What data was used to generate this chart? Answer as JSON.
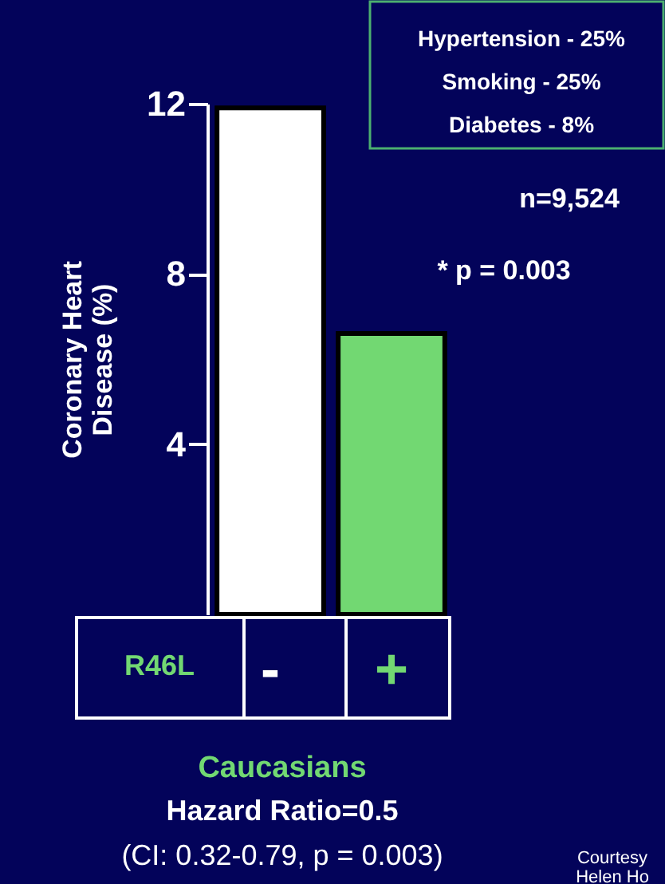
{
  "chart_data": {
    "type": "bar",
    "categories": [
      "-",
      "+"
    ],
    "values": [
      11.9,
      6.6
    ],
    "colors": [
      "#ffffff",
      "#72d872"
    ],
    "xlabel": "R46L",
    "ylabel": "Coronary Heart Disease (%)",
    "ylim": [
      0,
      12
    ],
    "yticks": [
      4,
      8,
      12
    ],
    "grid": false,
    "annotations": [
      "Hypertension - 25%",
      "Smoking - 25%",
      "Diabetes - 8%",
      "n=9,524",
      "* p = 0.003",
      "Caucasians",
      "Hazard Ratio=0.5",
      "(CI: 0.32-0.79, p = 0.003)",
      "Courtesy",
      "Helen Ho"
    ]
  }
}
